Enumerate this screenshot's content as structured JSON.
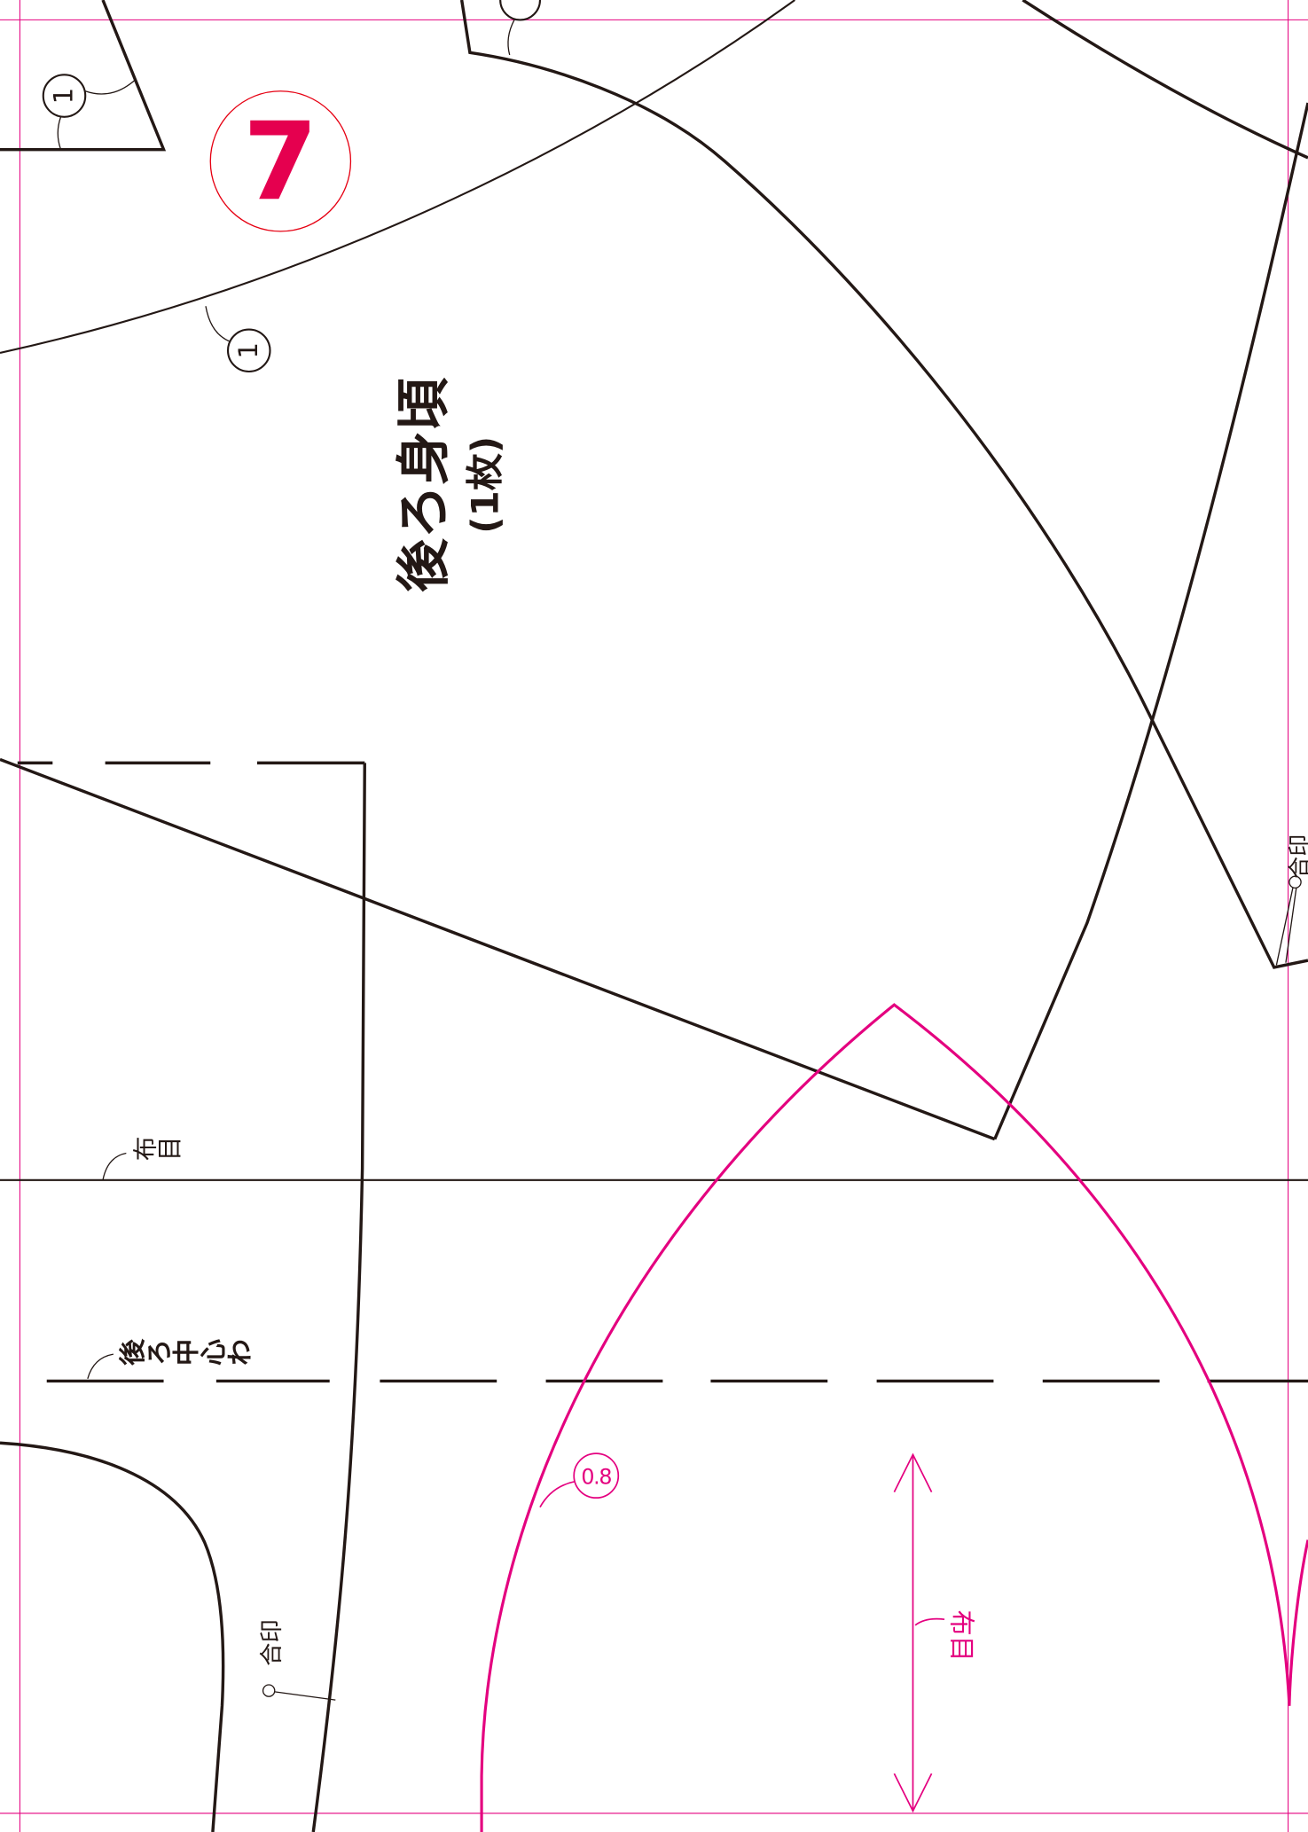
{
  "sheet": {
    "page_number": "7"
  },
  "piece": {
    "name": "後ろ身頃",
    "quantity": "(1枚)"
  },
  "notch_labels": {
    "top_left": "1",
    "neckline": "1"
  },
  "labels": {
    "grain_line": "布目",
    "center_back_fold": "後ろ中心わ",
    "match_mark_left": "合印",
    "match_mark_right": "合印",
    "pink_grain_line": "布目",
    "seam_allowance": "0.8"
  },
  "colors": {
    "ink": "#231815",
    "pink_pattern": "#e4007f",
    "guide_lines": "#e4007f",
    "page_circle": "#e60012",
    "page_number": "#e5004f"
  }
}
